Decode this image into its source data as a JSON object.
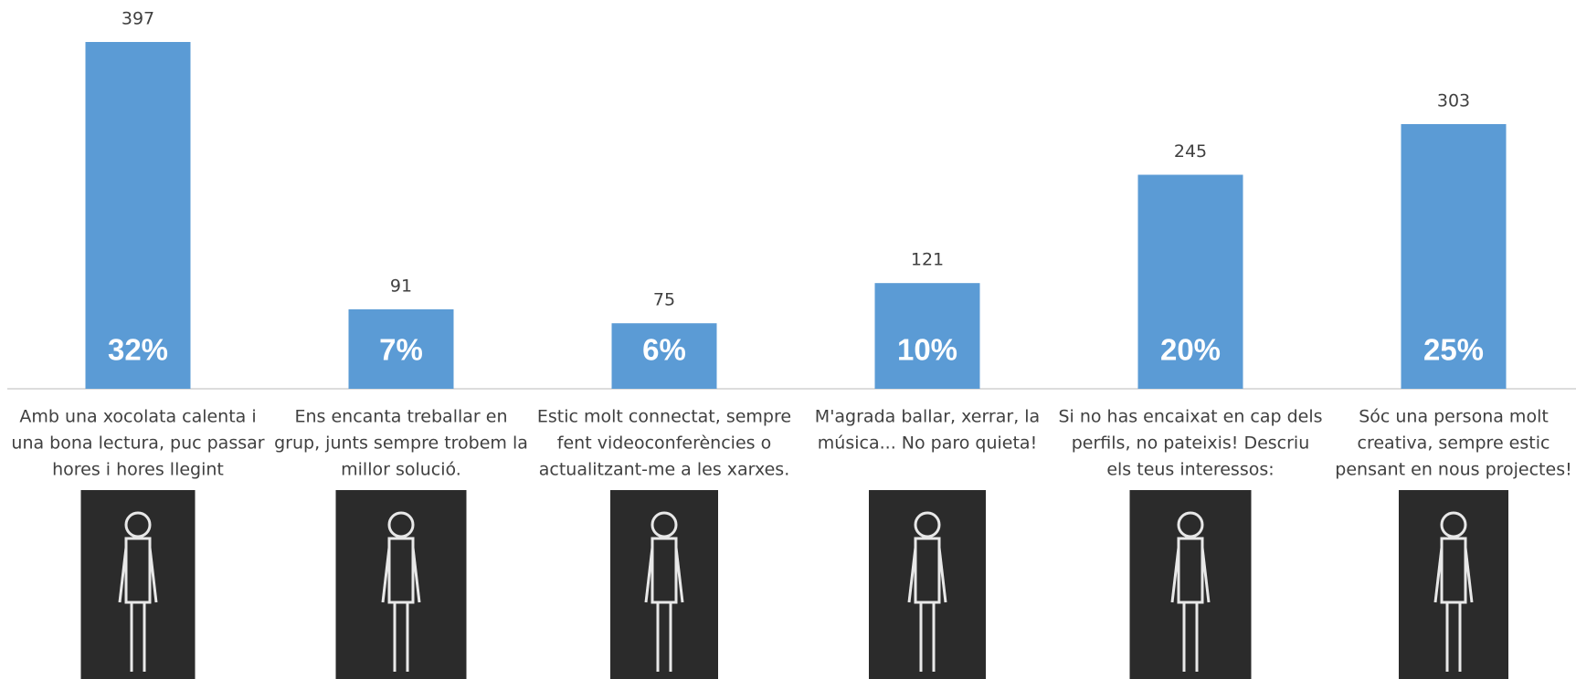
{
  "chart_data": {
    "type": "bar",
    "color": "#5b9bd5",
    "categories": [
      [
        "Amb una xocolata calenta i",
        "una bona lectura, puc passar",
        "hores i hores llegint"
      ],
      [
        "Ens encanta treballar en",
        "grup, junts sempre trobem la",
        "millor solució."
      ],
      [
        "Estic molt connectat, sempre",
        "fent videoconferències o",
        "actualitzant-me a les xarxes."
      ],
      [
        "M'agrada ballar, xerrar, la",
        "música... No paro quieta!"
      ],
      [
        "Si no has encaixat en cap dels",
        "perfils, no pateixis! Descriu",
        "els teus interessos:"
      ],
      [
        "Sóc una persona molt",
        "creativa, sempre estic",
        "pensant en nous projectes!"
      ]
    ],
    "values": [
      397,
      91,
      75,
      121,
      245,
      303
    ],
    "share_labels": [
      "32%",
      "7%",
      "6%",
      "10%",
      "20%",
      "25%"
    ]
  }
}
